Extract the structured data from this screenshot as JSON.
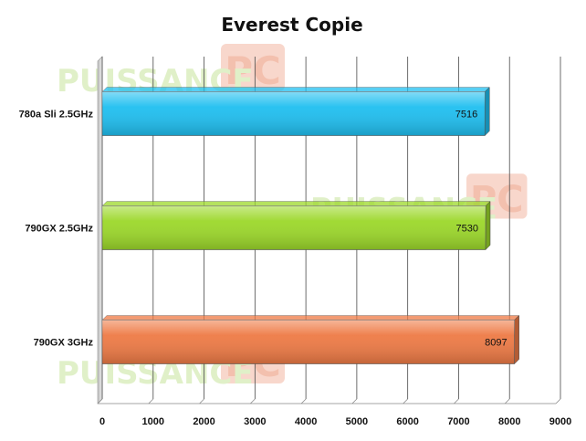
{
  "chart_data": {
    "type": "bar",
    "orientation": "horizontal",
    "title": "Everest Copie",
    "categories": [
      "780a Sli 2.5GHz",
      "790GX 2.5GHz",
      "790GX 3GHz"
    ],
    "values": [
      7516,
      7530,
      8097
    ],
    "bar_colors": [
      "#1fbff0",
      "#9cd82a",
      "#ee7a45"
    ],
    "xlim": [
      0,
      9000
    ],
    "xticks": [
      0,
      1000,
      2000,
      3000,
      4000,
      5000,
      6000,
      7000,
      8000,
      9000
    ],
    "grid": true,
    "legend": "none"
  },
  "watermark": {
    "text": "PUISSANCE",
    "badge": "PC"
  }
}
